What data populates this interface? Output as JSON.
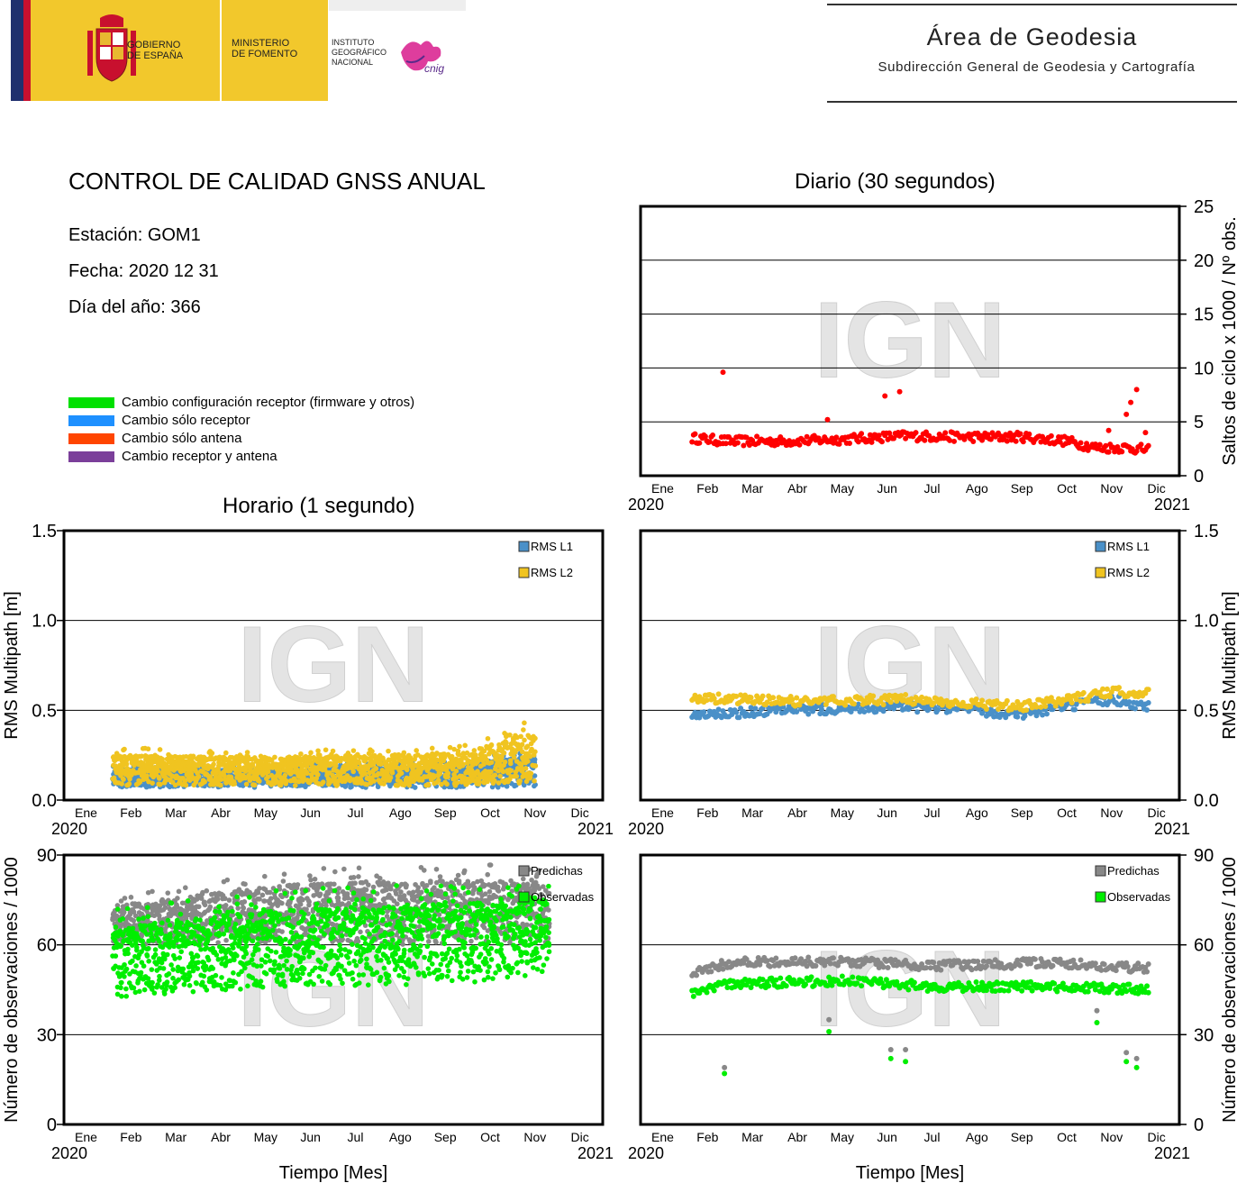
{
  "header": {
    "gob_label": "GOBIERNO\nDE ESPAÑA",
    "min_label": "MINISTERIO\nDE FOMENTO",
    "ign_label": "INSTITUTO\nGEOGRÁFICO\nNACIONAL",
    "cnig_label": "cnig",
    "area_title": "Área de Geodesia",
    "area_subtitle": "Subdirección General de Geodesia y Cartografía"
  },
  "info": {
    "title": "CONTROL DE CALIDAD GNSS ANUAL",
    "station": "Estación: GOM1",
    "date": "Fecha: 2020 12 31",
    "doy": "Día del año: 366"
  },
  "legend": [
    {
      "label": "Cambio configuración receptor (firmware y otros)",
      "color": "#00e000"
    },
    {
      "label": "Cambio sólo receptor",
      "color": "#1e90ff"
    },
    {
      "label": "Cambio sólo antena",
      "color": "#ff4500"
    },
    {
      "label": "Cambio receptor y antena",
      "color": "#7b3f9a"
    }
  ],
  "section_titles": {
    "daily": "Diario (30 segundos)",
    "hourly": "Horario (1 segundo)"
  },
  "watermark": "IGN",
  "chart_data": [
    {
      "id": "cycle_slips_daily",
      "type": "scatter",
      "title": "Diario (30 segundos)",
      "ylabel": "Saltos de ciclo x 1000 / Nº obs.",
      "xlabel": "",
      "ylim": [
        0,
        25
      ],
      "yticks": [
        "0",
        "5",
        "10",
        "15",
        "20",
        "25"
      ],
      "grid": true,
      "xtick_labels": [
        "Ene",
        "Feb",
        "Mar",
        "Abr",
        "May",
        "Jun",
        "Jul",
        "Ago",
        "Sep",
        "Oct",
        "Nov",
        "Dic"
      ],
      "x_start_label": "2020",
      "x_end_label": "2021",
      "series": [
        {
          "color": "#ff0000",
          "baseline": [
            [
              35,
              3.5
            ],
            [
              60,
              3.2
            ],
            [
              100,
              3.2
            ],
            [
              140,
              3.4
            ],
            [
              180,
              3.7
            ],
            [
              220,
              3.6
            ],
            [
              260,
              3.6
            ],
            [
              290,
              3.2
            ],
            [
              310,
              2.6
            ],
            [
              330,
              2.6
            ],
            [
              345,
              2.4
            ]
          ],
          "outliers": [
            [
              56,
              9.6
            ],
            [
              127,
              5.2
            ],
            [
              166,
              7.4
            ],
            [
              176,
              7.8
            ],
            [
              318,
              4.2
            ],
            [
              330,
              5.7
            ],
            [
              333,
              6.8
            ],
            [
              337,
              8.0
            ],
            [
              343,
              4.0
            ]
          ]
        }
      ]
    },
    {
      "id": "multipath_hourly",
      "type": "scatter",
      "ylabel": "RMS Multipath [m]",
      "xlabel": "",
      "ylim": [
        0,
        1.5
      ],
      "yticks": [
        "0.0",
        "0.5",
        "1.0",
        "1.5"
      ],
      "grid": true,
      "xtick_labels": [
        "Ene",
        "Feb",
        "Mar",
        "Abr",
        "May",
        "Jun",
        "Jul",
        "Ago",
        "Sep",
        "Oct",
        "Nov",
        "Dic"
      ],
      "x_start_label": "2020",
      "x_end_label": "2021",
      "series": [
        {
          "name": "RMS L1",
          "color": "#4a90c8",
          "band": [
            [
              33,
              0.07,
              0.17
            ],
            [
              150,
              0.07,
              0.17
            ],
            [
              270,
              0.07,
              0.19
            ],
            [
              320,
              0.07,
              0.25
            ]
          ]
        },
        {
          "name": "RMS L2",
          "color": "#f0c420",
          "band": [
            [
              33,
              0.08,
              0.25
            ],
            [
              150,
              0.08,
              0.24
            ],
            [
              270,
              0.08,
              0.26
            ],
            [
              320,
              0.08,
              0.38
            ]
          ]
        }
      ]
    },
    {
      "id": "multipath_daily",
      "type": "scatter",
      "ylabel": "RMS Multipath [m]",
      "xlabel": "",
      "ylim": [
        0,
        1.5
      ],
      "yticks": [
        "0.0",
        "0.5",
        "1.0",
        "1.5"
      ],
      "grid": true,
      "xtick_labels": [
        "Ene",
        "Feb",
        "Mar",
        "Abr",
        "May",
        "Jun",
        "Jul",
        "Ago",
        "Sep",
        "Oct",
        "Nov",
        "Dic"
      ],
      "x_start_label": "2020",
      "x_end_label": "2021",
      "series": [
        {
          "name": "RMS L1",
          "color": "#4a90c8",
          "baseline": [
            [
              35,
              0.47
            ],
            [
              100,
              0.5
            ],
            [
              180,
              0.52
            ],
            [
              260,
              0.48
            ],
            [
              320,
              0.56
            ],
            [
              345,
              0.52
            ]
          ]
        },
        {
          "name": "RMS L2",
          "color": "#f0c420",
          "baseline": [
            [
              35,
              0.57
            ],
            [
              100,
              0.55
            ],
            [
              180,
              0.56
            ],
            [
              260,
              0.52
            ],
            [
              320,
              0.6
            ],
            [
              345,
              0.6
            ]
          ]
        }
      ]
    },
    {
      "id": "observations_hourly",
      "type": "scatter",
      "ylabel": "Número de observaciones / 1000",
      "xlabel": "Tiempo [Mes]",
      "ylim": [
        0,
        90
      ],
      "yticks": [
        "0",
        "30",
        "60",
        "90"
      ],
      "grid": true,
      "xtick_labels": [
        "Ene",
        "Feb",
        "Mar",
        "Abr",
        "May",
        "Jun",
        "Jul",
        "Ago",
        "Sep",
        "Oct",
        "Nov",
        "Dic"
      ],
      "x_start_label": "2020",
      "x_end_label": "2021",
      "series": [
        {
          "name": "Predichas",
          "color": "#888888",
          "band": [
            [
              33,
              60,
              73
            ],
            [
              150,
              60,
              80
            ],
            [
              270,
              60,
              82
            ],
            [
              330,
              60,
              80
            ]
          ]
        },
        {
          "name": "Observadas",
          "color": "#00ee00",
          "band": [
            [
              33,
              42,
              66
            ],
            [
              150,
              46,
              72
            ],
            [
              270,
              47,
              74
            ],
            [
              330,
              50,
              74
            ]
          ]
        }
      ]
    },
    {
      "id": "observations_daily",
      "type": "scatter",
      "ylabel": "Número de observaciones / 1000",
      "xlabel": "Tiempo [Mes]",
      "ylim": [
        0,
        90
      ],
      "yticks": [
        "0",
        "30",
        "60",
        "90"
      ],
      "grid": true,
      "xtick_labels": [
        "Ene",
        "Feb",
        "Mar",
        "Abr",
        "May",
        "Jun",
        "Jul",
        "Ago",
        "Sep",
        "Oct",
        "Nov",
        "Dic"
      ],
      "x_start_label": "2020",
      "x_end_label": "2021",
      "series": [
        {
          "name": "Predichas",
          "color": "#888888",
          "baseline": [
            [
              35,
              50
            ],
            [
              60,
              54
            ],
            [
              140,
              54.5
            ],
            [
              200,
              53
            ],
            [
              280,
              54
            ],
            [
              345,
              52
            ]
          ],
          "outliers": [
            [
              57,
              19
            ],
            [
              128,
              35
            ],
            [
              170,
              25
            ],
            [
              180,
              25
            ],
            [
              310,
              38
            ],
            [
              330,
              24
            ],
            [
              337,
              22
            ]
          ]
        },
        {
          "name": "Observadas",
          "color": "#00ee00",
          "baseline": [
            [
              35,
              43.5
            ],
            [
              60,
              47
            ],
            [
              140,
              48
            ],
            [
              200,
              46
            ],
            [
              280,
              46
            ],
            [
              345,
              45
            ]
          ],
          "outliers": [
            [
              57,
              17
            ],
            [
              128,
              31
            ],
            [
              170,
              22
            ],
            [
              180,
              21
            ],
            [
              310,
              34
            ],
            [
              330,
              21
            ],
            [
              337,
              19
            ]
          ]
        }
      ]
    }
  ]
}
